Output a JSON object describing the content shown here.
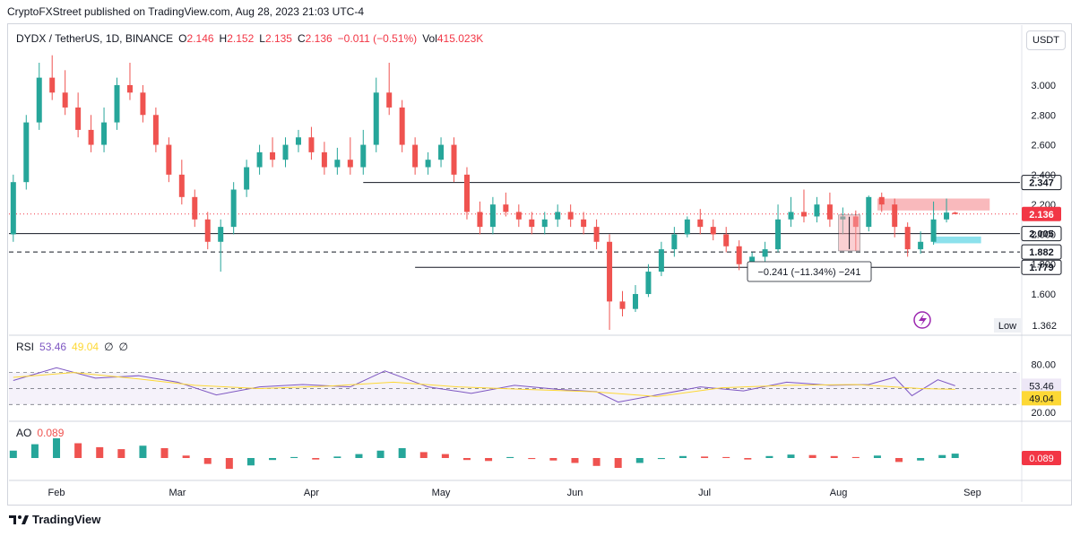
{
  "caption": "CryptoFXStreet published on TradingView.com, Aug 28, 2023 21:03 UTC-4",
  "legend": {
    "symbol": "DYDX / TetherUS, 1D, BINANCE",
    "o_label": "O",
    "o": "2.146",
    "h_label": "H",
    "h": "2.152",
    "l_label": "L",
    "l": "2.135",
    "c_label": "C",
    "c": "2.136",
    "change": "−0.011 (−0.51%)",
    "vol_label": "Vol",
    "vol": "415.023K"
  },
  "currency_button": "USDT",
  "rsi_legend": {
    "label": "RSI",
    "rsi": "53.46",
    "ma": "49.04",
    "e1": "∅",
    "e2": "∅"
  },
  "ao_legend": {
    "label": "AO",
    "value": "0.089"
  },
  "footer": {
    "brand": "TradingView"
  },
  "colors": {
    "up": "#26a69a",
    "down": "#ef5350",
    "rsi_line": "#7e57c2",
    "rsi_ma": "#fdd835",
    "supply_zone": "#f7a1a6",
    "demand_zone": "#80deea",
    "current_price_tag": "#f23645"
  },
  "chart_data": [
    {
      "type": "candlestick",
      "title": "DYDX / TetherUS, 1D, BINANCE",
      "x_ticks": [
        "Feb",
        "Mar",
        "Apr",
        "May",
        "Jun",
        "Jul",
        "Aug",
        "Sep"
      ],
      "x_range": [
        "2023-01-21",
        "2023-09-12"
      ],
      "y_ticks": [
        "1.600",
        "1.800",
        "2.000",
        "2.200",
        "2.400",
        "2.600",
        "2.800",
        "3.000"
      ],
      "ylim": [
        1.36,
        3.21
      ],
      "horizontal_levels": [
        {
          "label": "2.347",
          "value": 2.347,
          "style": "solid",
          "from": "2023-04-13"
        },
        {
          "label": "2.005",
          "value": 2.005,
          "style": "solid",
          "from": "2023-01-21"
        },
        {
          "label": "1.882",
          "value": 1.882,
          "style": "dashed",
          "from": "2023-01-21"
        },
        {
          "label": "1.779",
          "value": 1.779,
          "style": "solid",
          "from": "2023-04-25"
        }
      ],
      "current_price": {
        "label": "2.136",
        "value": 2.136
      },
      "low_marker": {
        "label": "Low",
        "value": "1.362"
      },
      "measurement": {
        "label": "−0.241 (−11.34%) −241",
        "from": 2.13,
        "to": 1.889,
        "start": "2023-08-01",
        "end": "2023-08-06"
      },
      "zones": [
        {
          "name": "supply",
          "from_date": "2023-08-10",
          "to_date": "2023-09-05",
          "low": 2.16,
          "high": 2.24
        },
        {
          "name": "demand",
          "from_date": "2023-08-23",
          "to_date": "2023-09-03",
          "low": 1.94,
          "high": 1.985
        }
      ],
      "series": [
        {
          "dates": [
            "2023-01-22",
            "2023-01-25",
            "2023-01-28",
            "2023-01-31",
            "2023-02-03",
            "2023-02-06",
            "2023-02-09",
            "2023-02-12",
            "2023-02-15",
            "2023-02-18",
            "2023-02-21",
            "2023-02-24",
            "2023-02-27",
            "2023-03-02",
            "2023-03-05",
            "2023-03-08",
            "2023-03-11",
            "2023-03-14",
            "2023-03-17",
            "2023-03-20",
            "2023-03-23",
            "2023-03-26",
            "2023-03-29",
            "2023-04-01",
            "2023-04-04",
            "2023-04-07",
            "2023-04-10",
            "2023-04-13",
            "2023-04-16",
            "2023-04-19",
            "2023-04-22",
            "2023-04-25",
            "2023-04-28",
            "2023-05-01",
            "2023-05-04",
            "2023-05-07",
            "2023-05-10",
            "2023-05-13",
            "2023-05-16",
            "2023-05-19",
            "2023-05-22",
            "2023-05-25",
            "2023-05-28",
            "2023-05-31",
            "2023-06-03",
            "2023-06-06",
            "2023-06-09",
            "2023-06-12",
            "2023-06-15",
            "2023-06-18",
            "2023-06-21",
            "2023-06-24",
            "2023-06-27",
            "2023-06-30",
            "2023-07-03",
            "2023-07-06",
            "2023-07-09",
            "2023-07-12",
            "2023-07-15",
            "2023-07-18",
            "2023-07-21",
            "2023-07-24",
            "2023-07-27",
            "2023-07-30",
            "2023-08-02",
            "2023-08-05",
            "2023-08-08",
            "2023-08-11",
            "2023-08-14",
            "2023-08-17",
            "2023-08-20",
            "2023-08-23",
            "2023-08-26",
            "2023-08-28"
          ],
          "open": [
            2.0,
            2.35,
            2.75,
            3.05,
            2.95,
            2.85,
            2.7,
            2.6,
            2.75,
            3.0,
            2.95,
            2.8,
            2.6,
            2.4,
            2.25,
            2.1,
            1.95,
            2.05,
            2.3,
            2.45,
            2.55,
            2.5,
            2.6,
            2.65,
            2.55,
            2.45,
            2.5,
            2.45,
            2.6,
            2.95,
            2.85,
            2.6,
            2.45,
            2.5,
            2.6,
            2.4,
            2.15,
            2.05,
            2.2,
            2.15,
            2.1,
            2.05,
            2.1,
            2.15,
            2.1,
            2.05,
            1.95,
            1.55,
            1.5,
            1.6,
            1.75,
            1.9,
            2.0,
            2.1,
            2.05,
            2.0,
            1.92,
            1.8,
            1.85,
            1.9,
            2.1,
            2.15,
            2.12,
            2.2,
            2.1,
            2.12,
            2.05,
            2.25,
            2.2,
            2.05,
            1.9,
            1.95,
            2.1,
            2.146
          ],
          "high": [
            2.4,
            2.8,
            3.15,
            3.2,
            3.1,
            2.95,
            2.8,
            2.85,
            3.05,
            3.15,
            3.0,
            2.85,
            2.65,
            2.5,
            2.3,
            2.15,
            2.1,
            2.35,
            2.5,
            2.6,
            2.65,
            2.65,
            2.7,
            2.72,
            2.62,
            2.58,
            2.65,
            2.7,
            3.05,
            3.15,
            2.9,
            2.65,
            2.55,
            2.65,
            2.65,
            2.45,
            2.22,
            2.25,
            2.28,
            2.2,
            2.15,
            2.15,
            2.2,
            2.2,
            2.15,
            2.1,
            2.0,
            1.62,
            1.66,
            1.8,
            1.95,
            2.05,
            2.12,
            2.17,
            2.1,
            2.05,
            1.96,
            1.88,
            1.95,
            2.2,
            2.25,
            2.3,
            2.25,
            2.28,
            2.18,
            2.16,
            2.26,
            2.28,
            2.24,
            2.08,
            2.02,
            2.22,
            2.24,
            2.152
          ],
          "low": [
            1.95,
            2.3,
            2.7,
            2.9,
            2.8,
            2.65,
            2.55,
            2.55,
            2.7,
            2.9,
            2.75,
            2.55,
            2.35,
            2.2,
            2.05,
            1.9,
            1.75,
            2.0,
            2.25,
            2.4,
            2.45,
            2.45,
            2.55,
            2.5,
            2.4,
            2.4,
            2.4,
            2.4,
            2.55,
            2.8,
            2.55,
            2.4,
            2.4,
            2.45,
            2.35,
            2.1,
            2.0,
            2.0,
            2.12,
            2.05,
            2.0,
            2.0,
            2.05,
            2.05,
            2.0,
            1.9,
            1.36,
            1.45,
            1.48,
            1.58,
            1.72,
            1.85,
            1.98,
            2.0,
            1.96,
            1.88,
            1.76,
            1.76,
            1.8,
            1.88,
            2.05,
            2.08,
            2.08,
            2.05,
            2.0,
            1.89,
            2.02,
            2.15,
            1.98,
            1.85,
            1.87,
            1.93,
            2.08,
            2.135
          ],
          "close": [
            2.35,
            2.75,
            3.05,
            2.95,
            2.85,
            2.7,
            2.6,
            2.75,
            3.0,
            2.95,
            2.8,
            2.6,
            2.4,
            2.25,
            2.1,
            1.95,
            2.05,
            2.3,
            2.45,
            2.55,
            2.5,
            2.6,
            2.65,
            2.55,
            2.45,
            2.5,
            2.45,
            2.6,
            2.95,
            2.85,
            2.6,
            2.45,
            2.5,
            2.6,
            2.4,
            2.15,
            2.05,
            2.2,
            2.15,
            2.1,
            2.05,
            2.1,
            2.15,
            2.1,
            2.05,
            1.95,
            1.55,
            1.5,
            1.6,
            1.75,
            1.9,
            2.0,
            2.1,
            2.05,
            2.0,
            1.92,
            1.8,
            1.85,
            1.9,
            2.1,
            2.15,
            2.12,
            2.2,
            2.1,
            2.12,
            2.05,
            2.25,
            2.2,
            2.05,
            1.9,
            1.95,
            2.1,
            2.146,
            2.136
          ]
        }
      ]
    },
    {
      "type": "line",
      "title": "RSI",
      "y_ticks": [
        "20.00",
        "80.00"
      ],
      "levels": [
        70,
        50,
        30
      ],
      "ylim": [
        18,
        92
      ],
      "current_labels": {
        "rsi": "53.46",
        "ma": "49.04"
      },
      "series": [
        {
          "name": "RSI",
          "dates": [
            "2023-01-22",
            "2023-02-01",
            "2023-02-10",
            "2023-02-20",
            "2023-03-01",
            "2023-03-10",
            "2023-03-20",
            "2023-03-30",
            "2023-04-10",
            "2023-04-18",
            "2023-04-28",
            "2023-05-08",
            "2023-05-18",
            "2023-05-28",
            "2023-06-06",
            "2023-06-11",
            "2023-06-20",
            "2023-06-30",
            "2023-07-10",
            "2023-07-20",
            "2023-07-30",
            "2023-08-08",
            "2023-08-14",
            "2023-08-18",
            "2023-08-24",
            "2023-08-28"
          ],
          "values": [
            60,
            76,
            63,
            66,
            58,
            42,
            52,
            55,
            52,
            72,
            52,
            44,
            54,
            49,
            46,
            33,
            42,
            52,
            47,
            58,
            54,
            55,
            64,
            41,
            61,
            53.46
          ]
        },
        {
          "name": "RSI MA",
          "dates": [
            "2023-01-22",
            "2023-02-05",
            "2023-02-20",
            "2023-03-05",
            "2023-03-20",
            "2023-04-05",
            "2023-04-20",
            "2023-05-05",
            "2023-05-20",
            "2023-06-05",
            "2023-06-20",
            "2023-07-05",
            "2023-07-20",
            "2023-08-05",
            "2023-08-20",
            "2023-08-28"
          ],
          "values": [
            64,
            70,
            62,
            54,
            50,
            53,
            58,
            52,
            49,
            46,
            40,
            51,
            54,
            55,
            50,
            49.04
          ]
        }
      ]
    },
    {
      "type": "bar",
      "title": "AO",
      "current_label": "0.089",
      "series": [
        {
          "name": "AO",
          "dates": [
            "2023-01-22",
            "2023-01-27",
            "2023-02-01",
            "2023-02-06",
            "2023-02-11",
            "2023-02-16",
            "2023-02-21",
            "2023-02-26",
            "2023-03-03",
            "2023-03-08",
            "2023-03-13",
            "2023-03-18",
            "2023-03-23",
            "2023-03-28",
            "2023-04-02",
            "2023-04-07",
            "2023-04-12",
            "2023-04-17",
            "2023-04-22",
            "2023-04-27",
            "2023-05-02",
            "2023-05-07",
            "2023-05-12",
            "2023-05-17",
            "2023-05-22",
            "2023-05-27",
            "2023-06-01",
            "2023-06-06",
            "2023-06-11",
            "2023-06-16",
            "2023-06-21",
            "2023-06-26",
            "2023-07-01",
            "2023-07-06",
            "2023-07-11",
            "2023-07-16",
            "2023-07-21",
            "2023-07-26",
            "2023-07-31",
            "2023-08-05",
            "2023-08-10",
            "2023-08-15",
            "2023-08-20",
            "2023-08-25",
            "2023-08-28"
          ],
          "values": [
            0.15,
            0.28,
            0.4,
            0.3,
            0.22,
            0.18,
            0.25,
            0.2,
            0.05,
            -0.12,
            -0.22,
            -0.15,
            -0.04,
            0.02,
            -0.03,
            0.03,
            0.08,
            0.15,
            0.2,
            0.12,
            0.08,
            -0.04,
            -0.06,
            0.02,
            -0.02,
            -0.05,
            -0.1,
            -0.16,
            -0.2,
            -0.1,
            -0.02,
            0.04,
            0.03,
            0.02,
            -0.03,
            0.04,
            0.07,
            0.06,
            0.04,
            0.02,
            0.05,
            -0.08,
            -0.05,
            0.06,
            0.089
          ]
        }
      ]
    }
  ]
}
